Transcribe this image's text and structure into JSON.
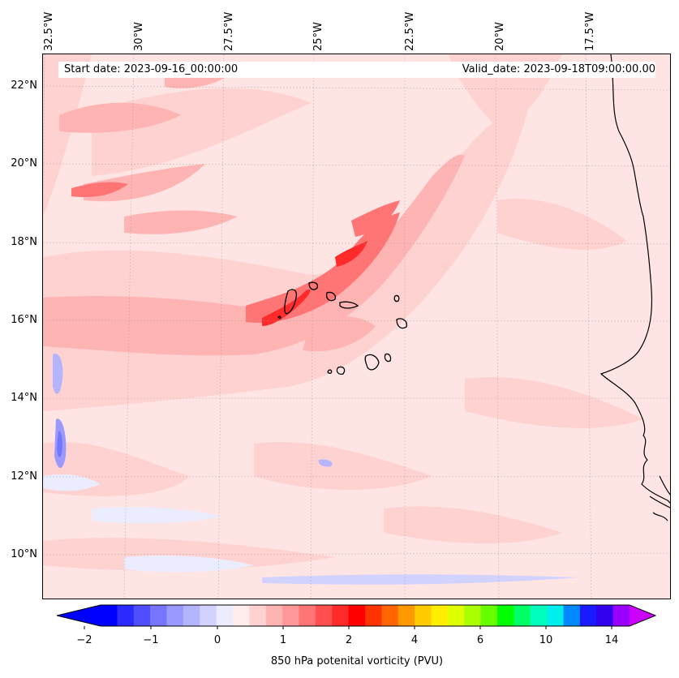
{
  "map": {
    "start_date": "Start date: 2023-09-16_00:00:00",
    "valid_date": "Valid_date: 2023-09-18T09:00:00.00",
    "lon_labels": [
      "32.5°W",
      "30°W",
      "27.5°W",
      "25°W",
      "22.5°W",
      "20°W",
      "17.5°W"
    ],
    "lat_labels": [
      "22°N",
      "20°N",
      "18°N",
      "16°N",
      "14°N",
      "12°N",
      "10°N"
    ],
    "field": "potential vorticity",
    "coastline_color": "#000000",
    "background_color": "#ffe4e4"
  },
  "colorbar": {
    "label": "850 hPa potenital vorticity (PVU)",
    "tick_labels": [
      "−2",
      "−1",
      "0",
      "1",
      "2",
      "4",
      "6",
      "10",
      "14"
    ],
    "colors": [
      "#0000ff",
      "#2a2aff",
      "#4f4fff",
      "#7575ff",
      "#9999ff",
      "#b4b4ff",
      "#d2d2ff",
      "#ececff",
      "#ffecec",
      "#ffd2d2",
      "#ffb4b4",
      "#ff9999",
      "#ff7575",
      "#ff4f4f",
      "#ff2a2a",
      "#ff0000",
      "#ff3300",
      "#ff6600",
      "#ff9900",
      "#ffcc00",
      "#ffee00",
      "#ddff00",
      "#aaff00",
      "#66ff00",
      "#00ff00",
      "#00ff66",
      "#00ffbb",
      "#00eeee",
      "#0088ff",
      "#1a1aff",
      "#3300ee",
      "#9900ff"
    ],
    "under_color": "#0000ff",
    "over_color": "#cc00ff",
    "extend": "both"
  }
}
